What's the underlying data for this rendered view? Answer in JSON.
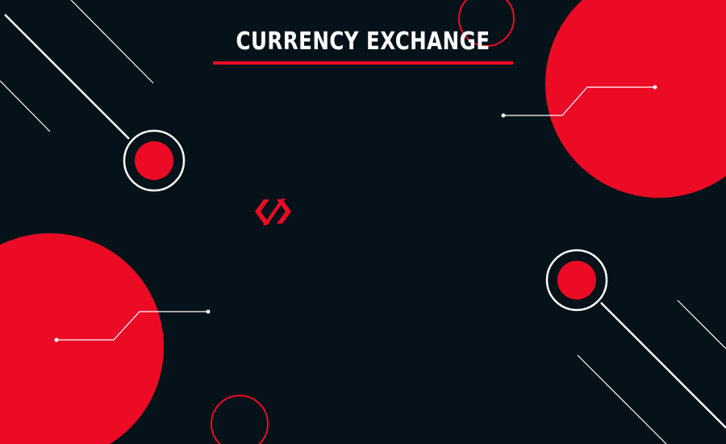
{
  "banner": {
    "title": "CURRENCY EXCHANGE"
  },
  "colors": {
    "background": "#06121a",
    "accent": "#ec0b24",
    "line": "#ffffff"
  },
  "icons": {
    "logo": "code-slash-logo-icon"
  }
}
